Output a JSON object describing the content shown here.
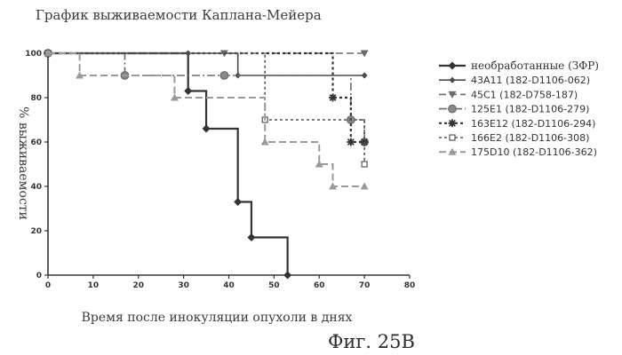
{
  "chart_data": {
    "type": "line",
    "title": "График выживаемости Каплана-Мейера",
    "xlabel": "Время после инокуляции опухоли в днях",
    "ylabel": "% выживаемости",
    "xlim": [
      0,
      80
    ],
    "ylim": [
      0,
      100
    ],
    "xticks": [
      0,
      10,
      20,
      30,
      40,
      50,
      60,
      70,
      80
    ],
    "yticks": [
      0,
      20,
      40,
      60,
      80,
      100
    ],
    "grid": false,
    "legend_position": "right",
    "step": true,
    "series": [
      {
        "name": "необработанные (ЗФР)",
        "color": "#333333",
        "dash": "",
        "width": 2.2,
        "marker": "diamond",
        "x": [
          0,
          31,
          35,
          42,
          45,
          53
        ],
        "y": [
          100,
          83,
          66,
          33,
          17,
          0
        ]
      },
      {
        "name": "43А11 (182-D1106-062)",
        "color": "#4a4a4a",
        "dash": "",
        "width": 1.6,
        "marker": "diamond-small",
        "x": [
          0,
          31,
          42,
          70
        ],
        "y": [
          100,
          100,
          90,
          90
        ]
      },
      {
        "name": "45С1 (182-D758-187)",
        "color": "#6a6a6a",
        "dash": "8,4",
        "width": 1.6,
        "marker": "triangle-down",
        "x": [
          0,
          39,
          70
        ],
        "y": [
          100,
          100,
          100
        ]
      },
      {
        "name": "125Е1 (182-D1106-279)",
        "color": "#6a6a6a",
        "dash": "9,3,2,3",
        "width": 1.6,
        "marker": "circle",
        "x": [
          0,
          17,
          39,
          67,
          70
        ],
        "y": [
          100,
          90,
          90,
          70,
          60
        ]
      },
      {
        "name": "163Е12 (182-D1106-294)",
        "color": "#333333",
        "dash": "3,3",
        "width": 2.2,
        "marker": "star",
        "x": [
          0,
          63,
          67,
          70
        ],
        "y": [
          100,
          80,
          60,
          60
        ]
      },
      {
        "name": "166Е2 (182-D1106-308)",
        "color": "#555555",
        "dash": "3,3",
        "width": 1.6,
        "marker": "square",
        "x": [
          0,
          48,
          70
        ],
        "y": [
          100,
          70,
          50
        ]
      },
      {
        "name": "175D10 (182-D1106-362)",
        "color": "#9a9a9a",
        "dash": "8,4",
        "width": 2.0,
        "marker": "triangle-up",
        "x": [
          0,
          7,
          28,
          48,
          60,
          63,
          70
        ],
        "y": [
          100,
          90,
          80,
          60,
          50,
          40,
          40
        ]
      }
    ]
  },
  "figure_label": "Фиг. 25В"
}
